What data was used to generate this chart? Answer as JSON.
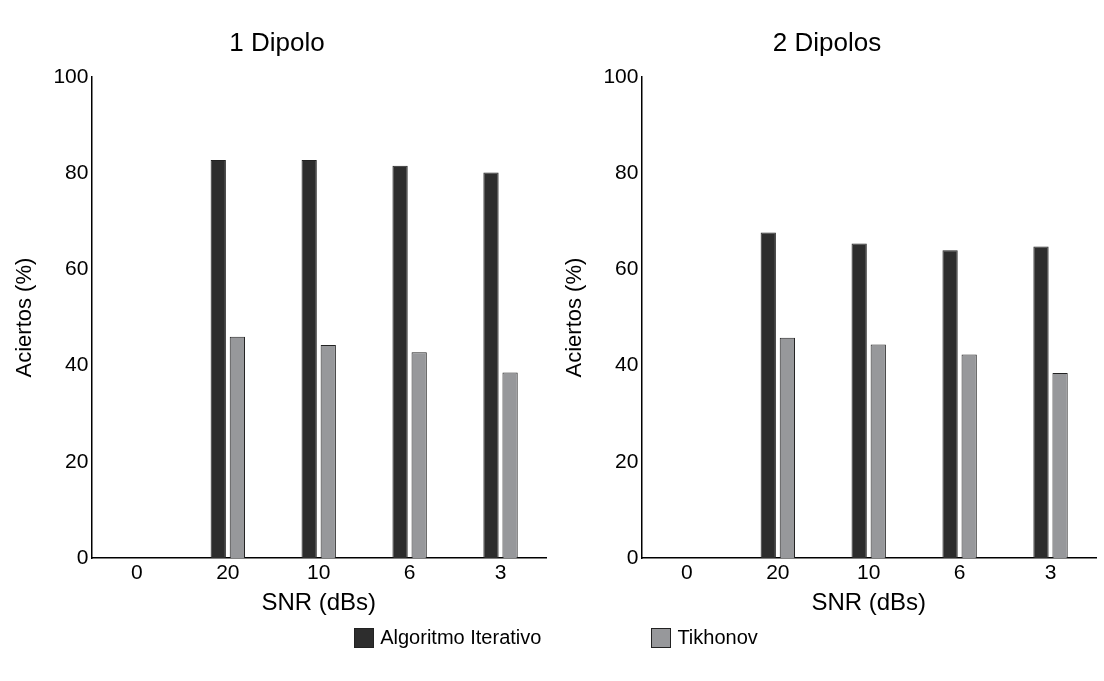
{
  "chart_data": [
    {
      "type": "bar",
      "title": "1 Dipolo",
      "xlabel": "SNR (dBs)",
      "ylabel": "Aciertos (%)",
      "categories": [
        "0",
        "20",
        "10",
        "6",
        "3"
      ],
      "ylim": [
        0,
        100
      ],
      "yticks": [
        0,
        20,
        40,
        60,
        80,
        100
      ],
      "grid": false,
      "legend": "bottom",
      "series": [
        {
          "name": "Algoritmo Iterativo",
          "color": "#2d2d2d",
          "values": [
            null,
            82.8,
            82.8,
            81.6,
            80.2
          ]
        },
        {
          "name": "Tikhonov",
          "color": "#97989b",
          "values": [
            null,
            46.0,
            44.3,
            42.8,
            38.6
          ]
        }
      ]
    },
    {
      "type": "bar",
      "title": "2 Dipolos",
      "xlabel": "SNR (dBs)",
      "ylabel": "Aciertos (%)",
      "categories": [
        "0",
        "20",
        "10",
        "6",
        "3"
      ],
      "ylim": [
        0,
        100
      ],
      "yticks": [
        0,
        20,
        40,
        60,
        80,
        100
      ],
      "grid": false,
      "series": [
        {
          "color": "#2d2d2d",
          "values": [
            null,
            67.7,
            65.4,
            64.0,
            64.8
          ]
        },
        {
          "color": "#97989b",
          "values": [
            null,
            45.8,
            44.4,
            42.3,
            38.5
          ]
        }
      ]
    }
  ]
}
